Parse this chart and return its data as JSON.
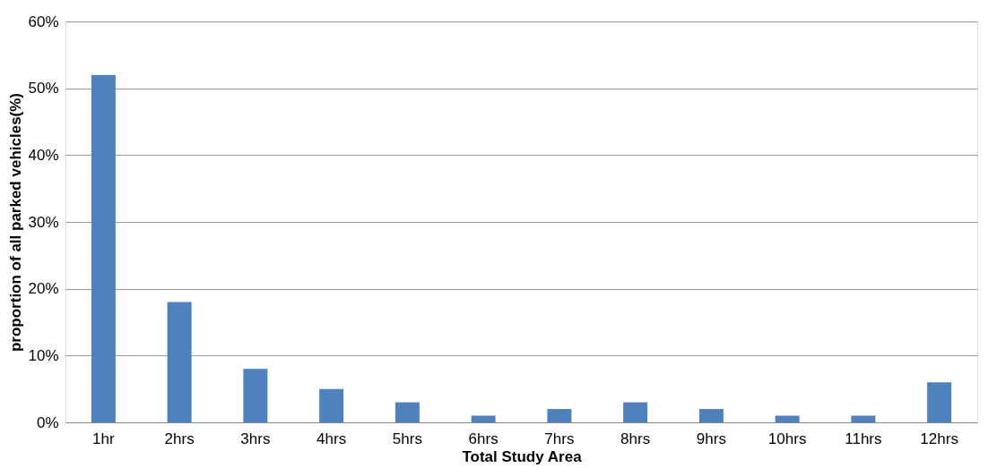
{
  "chart_data": {
    "type": "bar",
    "xlabel": "Total Study Area",
    "ylabel": "proportion of all parked vehicles(%)",
    "categories": [
      "1hr",
      "2hrs",
      "3hrs",
      "4hrs",
      "5hrs",
      "6hrs",
      "7hrs",
      "8hrs",
      "9hrs",
      "10hrs",
      "11hrs",
      "12hrs"
    ],
    "values": [
      52,
      18,
      8,
      5,
      3,
      1,
      2,
      3,
      2,
      1,
      1,
      6
    ],
    "color": "#4f81bd",
    "ylim": [
      0,
      60
    ],
    "yticks": [
      {
        "value": 0,
        "label": "0%"
      },
      {
        "value": 10,
        "label": "10%"
      },
      {
        "value": 20,
        "label": "20%"
      },
      {
        "value": 30,
        "label": "30%"
      },
      {
        "value": 40,
        "label": "40%"
      },
      {
        "value": 50,
        "label": "50%"
      },
      {
        "value": 60,
        "label": "60%"
      }
    ],
    "grid": "y"
  }
}
